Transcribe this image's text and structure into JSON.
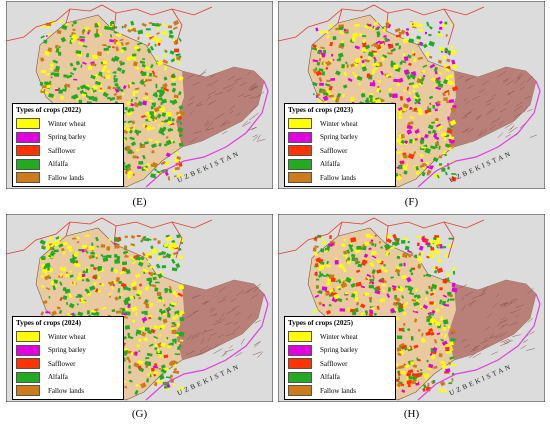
{
  "panels": [
    {
      "id": "E",
      "legend_title": "Types of crops (2022)",
      "caption": "(E)"
    },
    {
      "id": "F",
      "legend_title": "Types of crops (2023)",
      "caption": "(F)"
    },
    {
      "id": "G",
      "legend_title": "Types of crops (2024)",
      "caption": "(G)"
    },
    {
      "id": "H",
      "legend_title": "Types of crops (2025)",
      "caption": "(H)"
    }
  ],
  "legend_items": [
    {
      "label": "Winter wheat",
      "color": "#ffff00"
    },
    {
      "label": "Spring barley",
      "color": "#e000e0"
    },
    {
      "label": "Safflower",
      "color": "#ff3300"
    },
    {
      "label": "Alfalfa",
      "color": "#22aa22"
    },
    {
      "label": "Fallow lands",
      "color": "#cc7a1a"
    }
  ],
  "country_label": "UZBEKISTAN",
  "colors": {
    "background": "#dcdcdc",
    "region": "#e8c9a0",
    "mountain": "#b9807a",
    "border_red": "#e03a2a",
    "border_magenta": "#e040e0"
  }
}
